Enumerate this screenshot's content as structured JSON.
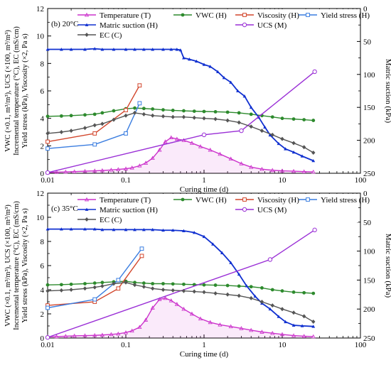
{
  "chart_data": [
    {
      "type": "line",
      "panel_label": "(b) 20°C",
      "xlabel": "Curing time (d)",
      "ylabel_left": [
        "VWC (×0.1, m³/m³), UCS (×100, m³/m³)",
        "Incremental temperature (°C), EC (mS/cm)",
        "Yield stress (kPa), Viscosity (×2, Pa s)"
      ],
      "ylabel_right": "Matric suction (kPa)",
      "xscale": "log",
      "xlim": [
        0.01,
        100
      ],
      "ylim_left": [
        0,
        12
      ],
      "ylim_right": [
        250,
        0
      ],
      "x_ticks": [
        "0.01",
        "0.1",
        "1",
        "10",
        "100"
      ],
      "y_ticks_left": [
        "0",
        "2",
        "4",
        "6",
        "8",
        "10",
        "12"
      ],
      "y_ticks_right": [
        "250",
        "200",
        "150",
        "100",
        "50",
        "0"
      ],
      "legend": "top",
      "series": [
        {
          "name": "Temperature (T)",
          "color": "#cc33cc",
          "marker": "triangle",
          "axis": "left",
          "x": [
            0.01,
            0.013,
            0.017,
            0.022,
            0.03,
            0.04,
            0.05,
            0.065,
            0.08,
            0.1,
            0.12,
            0.15,
            0.18,
            0.22,
            0.27,
            0.32,
            0.38,
            0.45,
            0.55,
            0.7,
            0.9,
            1.2,
            1.6,
            2.2,
            3,
            4,
            5.5,
            7.5,
            10,
            14,
            19,
            25
          ],
          "y": [
            0.05,
            0.08,
            0.1,
            0.12,
            0.15,
            0.18,
            0.2,
            0.24,
            0.28,
            0.33,
            0.4,
            0.55,
            0.75,
            1.1,
            1.7,
            2.3,
            2.6,
            2.5,
            2.4,
            2.2,
            1.95,
            1.7,
            1.4,
            1.05,
            0.7,
            0.45,
            0.3,
            0.22,
            0.18,
            0.15,
            0.12,
            0.1
          ]
        },
        {
          "name": "VWC (H)",
          "color": "#2d8a2d",
          "marker": "circle",
          "axis": "left",
          "x": [
            0.01,
            0.015,
            0.02,
            0.03,
            0.04,
            0.05,
            0.07,
            0.1,
            0.13,
            0.17,
            0.22,
            0.3,
            0.4,
            0.55,
            0.75,
            1,
            1.4,
            2,
            2.8,
            4,
            5.5,
            7.5,
            10,
            14,
            19,
            25
          ],
          "y": [
            4.15,
            4.17,
            4.2,
            4.25,
            4.3,
            4.4,
            4.55,
            4.7,
            4.75,
            4.72,
            4.68,
            4.62,
            4.58,
            4.55,
            4.52,
            4.5,
            4.48,
            4.45,
            4.4,
            4.3,
            4.2,
            4.1,
            4.0,
            3.95,
            3.9,
            3.85
          ]
        },
        {
          "name": "Viscosity (H)",
          "color": "#d2452b",
          "marker": "square",
          "axis": "left",
          "x": [
            0.01,
            0.04,
            0.1,
            0.15
          ],
          "y": [
            2.3,
            2.9,
            4.6,
            6.4
          ]
        },
        {
          "name": "Yield stress (H)",
          "color": "#3a7de0",
          "marker": "square",
          "axis": "left",
          "x": [
            0.01,
            0.04,
            0.1,
            0.15
          ],
          "y": [
            1.8,
            2.1,
            2.9,
            5.1
          ]
        },
        {
          "name": "Matric suction (H)",
          "color": "#1030d0",
          "marker": "triangle-filled",
          "axis": "right",
          "x": [
            0.01,
            0.015,
            0.02,
            0.03,
            0.04,
            0.05,
            0.07,
            0.1,
            0.13,
            0.17,
            0.22,
            0.3,
            0.38,
            0.45,
            0.5,
            0.55,
            0.65,
            0.8,
            1,
            1.2,
            1.5,
            1.8,
            2.2,
            2.7,
            3.3,
            4,
            5,
            6,
            7,
            9,
            11,
            14,
            18,
            25
          ],
          "y": [
            62,
            62,
            62,
            62,
            61,
            62,
            62,
            62,
            62,
            62,
            62,
            62,
            62,
            62,
            63,
            75,
            77,
            80,
            85,
            88,
            96,
            105,
            112,
            125,
            133,
            150,
            165,
            180,
            192,
            205,
            213,
            218,
            224,
            231
          ]
        },
        {
          "name": "UCS (M)",
          "color": "#9a2fd6",
          "marker": "circle-open",
          "axis": "left",
          "x": [
            0.01,
            1,
            3,
            26
          ],
          "y": [
            0.05,
            2.8,
            3.1,
            7.4
          ]
        },
        {
          "name": "EC (C)",
          "color": "#555555",
          "marker": "diamond",
          "axis": "left",
          "x": [
            0.01,
            0.015,
            0.02,
            0.03,
            0.04,
            0.05,
            0.07,
            0.1,
            0.13,
            0.17,
            0.22,
            0.3,
            0.4,
            0.55,
            0.75,
            1,
            1.4,
            2,
            2.8,
            4,
            5.5,
            7.5,
            10,
            14,
            19,
            25
          ],
          "y": [
            2.9,
            3.0,
            3.1,
            3.3,
            3.5,
            3.6,
            3.9,
            4.2,
            4.4,
            4.3,
            4.2,
            4.15,
            4.1,
            4.1,
            4.05,
            4.0,
            3.95,
            3.85,
            3.7,
            3.4,
            3.1,
            2.8,
            2.5,
            2.2,
            1.9,
            1.5
          ]
        }
      ]
    },
    {
      "type": "line",
      "panel_label": "(c) 35°C",
      "xlabel": "Curing time (d)",
      "ylabel_left": [
        "VWC (×0.1, m³/m³), UCS (×100, m³/m³)",
        "Incremental temperature (°C), EC (mS/cm)",
        "Yield stress (kPa), Viscosity (×2, Pa s)"
      ],
      "ylabel_right": "Matric suction (kPa)",
      "xscale": "log",
      "xlim": [
        0.01,
        100
      ],
      "ylim_left": [
        0,
        12
      ],
      "ylim_right": [
        250,
        0
      ],
      "x_ticks": [
        "0.01",
        "0.1",
        "1",
        "10",
        "100"
      ],
      "y_ticks_left": [
        "0",
        "2",
        "4",
        "6",
        "8",
        "10",
        "12"
      ],
      "y_ticks_right": [
        "250",
        "200",
        "150",
        "100",
        "50",
        "0"
      ],
      "legend": "top",
      "series": [
        {
          "name": "Temperature (T)",
          "color": "#cc33cc",
          "marker": "triangle",
          "axis": "left",
          "x": [
            0.01,
            0.013,
            0.017,
            0.022,
            0.03,
            0.04,
            0.05,
            0.065,
            0.08,
            0.1,
            0.12,
            0.15,
            0.18,
            0.22,
            0.27,
            0.32,
            0.38,
            0.45,
            0.55,
            0.7,
            0.9,
            1.2,
            1.6,
            2.2,
            3,
            4,
            5.5,
            7.5,
            10,
            14,
            19,
            25
          ],
          "y": [
            0.1,
            0.12,
            0.15,
            0.18,
            0.2,
            0.22,
            0.25,
            0.3,
            0.35,
            0.45,
            0.6,
            0.9,
            1.5,
            2.5,
            3.2,
            3.3,
            3.1,
            2.8,
            2.4,
            2.0,
            1.6,
            1.3,
            1.1,
            0.95,
            0.8,
            0.65,
            0.5,
            0.4,
            0.3,
            0.2,
            0.15,
            0.12
          ]
        },
        {
          "name": "VWC (H)",
          "color": "#2d8a2d",
          "marker": "circle",
          "axis": "left",
          "x": [
            0.01,
            0.015,
            0.02,
            0.03,
            0.04,
            0.05,
            0.07,
            0.1,
            0.13,
            0.17,
            0.22,
            0.3,
            0.4,
            0.55,
            0.75,
            1,
            1.4,
            2,
            2.8,
            4,
            5.5,
            7.5,
            10,
            14,
            19,
            25
          ],
          "y": [
            4.4,
            4.42,
            4.45,
            4.5,
            4.55,
            4.6,
            4.65,
            4.7,
            4.6,
            4.55,
            4.5,
            4.5,
            4.48,
            4.45,
            4.42,
            4.4,
            4.38,
            4.35,
            4.3,
            4.25,
            4.15,
            4.0,
            3.9,
            3.8,
            3.75,
            3.7
          ]
        },
        {
          "name": "Viscosity (H)",
          "color": "#d2452b",
          "marker": "square",
          "axis": "left",
          "x": [
            0.01,
            0.04,
            0.08,
            0.16
          ],
          "y": [
            2.7,
            3.0,
            4.1,
            6.8
          ]
        },
        {
          "name": "Yield stress (H)",
          "color": "#3a7de0",
          "marker": "square",
          "axis": "left",
          "x": [
            0.01,
            0.04,
            0.08,
            0.16
          ],
          "y": [
            2.5,
            3.2,
            4.8,
            7.4
          ]
        },
        {
          "name": "Matric suction (H)",
          "color": "#1030d0",
          "marker": "triangle-filled",
          "axis": "right",
          "x": [
            0.01,
            0.015,
            0.02,
            0.03,
            0.04,
            0.05,
            0.07,
            0.1,
            0.13,
            0.17,
            0.22,
            0.3,
            0.4,
            0.55,
            0.75,
            1,
            1.3,
            1.7,
            2.2,
            2.8,
            3.5,
            4.5,
            5.5,
            7,
            9,
            11,
            14,
            18,
            25
          ],
          "y": [
            62,
            62,
            62,
            62,
            62,
            63,
            63,
            63,
            63,
            63,
            63,
            64,
            64,
            65,
            68,
            75,
            88,
            103,
            120,
            140,
            160,
            178,
            190,
            200,
            213,
            222,
            228,
            229,
            230
          ]
        },
        {
          "name": "UCS (M)",
          "color": "#9a2fd6",
          "marker": "circle-open",
          "axis": "left",
          "x": [
            0.01,
            7,
            26
          ],
          "y": [
            0.05,
            6.5,
            8.95
          ]
        },
        {
          "name": "EC (C)",
          "color": "#555555",
          "marker": "diamond",
          "axis": "left",
          "x": [
            0.01,
            0.015,
            0.02,
            0.03,
            0.04,
            0.05,
            0.07,
            0.1,
            0.13,
            0.17,
            0.22,
            0.3,
            0.4,
            0.55,
            0.75,
            1,
            1.4,
            2,
            2.8,
            4,
            5.5,
            7.5,
            10,
            14,
            19,
            25
          ],
          "y": [
            3.9,
            3.95,
            4.0,
            4.1,
            4.2,
            4.3,
            4.5,
            4.6,
            4.4,
            4.25,
            4.1,
            4.0,
            3.95,
            3.9,
            3.85,
            3.8,
            3.7,
            3.6,
            3.5,
            3.3,
            3.0,
            2.7,
            2.4,
            2.1,
            1.8,
            1.35
          ]
        }
      ]
    }
  ]
}
